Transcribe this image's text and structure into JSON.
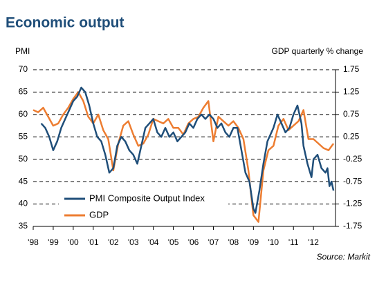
{
  "chart_data": {
    "type": "line",
    "title": "Economic output",
    "y_label": "PMI",
    "y2_label": "GDP quarterly % change",
    "source": "Source: Markit",
    "xlim": [
      1998,
      2013.1
    ],
    "xticks": [
      {
        "value": 1998,
        "label": "'98"
      },
      {
        "value": 1999,
        "label": "'99"
      },
      {
        "value": 2000,
        "label": "'00"
      },
      {
        "value": 2001,
        "label": "'01"
      },
      {
        "value": 2002,
        "label": "'02"
      },
      {
        "value": 2003,
        "label": "'03"
      },
      {
        "value": 2004,
        "label": "'04"
      },
      {
        "value": 2005,
        "label": "'05"
      },
      {
        "value": 2006,
        "label": "'06"
      },
      {
        "value": 2007,
        "label": "'07"
      },
      {
        "value": 2008,
        "label": "'08"
      },
      {
        "value": 2009,
        "label": "'09"
      },
      {
        "value": 2010,
        "label": "'10"
      },
      {
        "value": 2011,
        "label": "'11"
      },
      {
        "value": 2012,
        "label": "'12"
      }
    ],
    "ylim": [
      35,
      70
    ],
    "yticks": [
      35,
      40,
      45,
      50,
      55,
      60,
      65,
      70
    ],
    "y2lim": [
      -1.75,
      1.75
    ],
    "y2ticks": [
      -1.75,
      -1.25,
      -0.75,
      -0.25,
      0.25,
      0.75,
      1.25,
      1.75
    ],
    "grid": true,
    "legend": "lower left",
    "series": [
      {
        "name": "PMI Composite Output Index",
        "color": "#1f4e79",
        "x": [
          1998.4,
          1998.6,
          1998.8,
          1999.0,
          1999.2,
          1999.4,
          1999.6,
          1999.8,
          2000.0,
          2000.2,
          2000.4,
          2000.6,
          2000.8,
          2001.0,
          2001.2,
          2001.4,
          2001.6,
          2001.8,
          2002.0,
          2002.2,
          2002.4,
          2002.6,
          2002.8,
          2003.0,
          2003.2,
          2003.4,
          2003.6,
          2003.8,
          2004.0,
          2004.2,
          2004.4,
          2004.6,
          2004.8,
          2005.0,
          2005.2,
          2005.4,
          2005.6,
          2005.8,
          2006.0,
          2006.2,
          2006.4,
          2006.6,
          2006.8,
          2007.0,
          2007.2,
          2007.4,
          2007.6,
          2007.8,
          2008.0,
          2008.2,
          2008.4,
          2008.6,
          2008.8,
          2009.0,
          2009.1,
          2009.3,
          2009.5,
          2009.7,
          2010.0,
          2010.2,
          2010.4,
          2010.6,
          2010.8,
          2011.0,
          2011.2,
          2011.4,
          2011.5,
          2011.7,
          2011.9,
          2012.0,
          2012.2,
          2012.4,
          2012.6,
          2012.7,
          2012.8,
          2012.9,
          2013.0
        ],
        "values": [
          58,
          57,
          55,
          52,
          54,
          57,
          59,
          61,
          63,
          64,
          66,
          65,
          62,
          58,
          55,
          54,
          51,
          47,
          48,
          53,
          55,
          54,
          52,
          51,
          49,
          53,
          57,
          58,
          59,
          56,
          55,
          57,
          55,
          56,
          54,
          55,
          56,
          58,
          57,
          59,
          60,
          59,
          60,
          59,
          57,
          58,
          56,
          55,
          57,
          57,
          52,
          47,
          45,
          39,
          38,
          43,
          49,
          54,
          57,
          60,
          58,
          56,
          57,
          60,
          62,
          58,
          53,
          49,
          46,
          50,
          51,
          48,
          47,
          48,
          44,
          45,
          43
        ]
      },
      {
        "name": "GDP",
        "color": "#ed7d31",
        "axis": "y2",
        "x": [
          1998.0,
          1998.25,
          1998.5,
          1998.75,
          1999.0,
          1999.25,
          1999.5,
          1999.75,
          2000.0,
          2000.25,
          2000.5,
          2000.75,
          2001.0,
          2001.25,
          2001.5,
          2001.75,
          2002.0,
          2002.25,
          2002.5,
          2002.75,
          2003.0,
          2003.25,
          2003.5,
          2003.75,
          2004.0,
          2004.25,
          2004.5,
          2004.75,
          2005.0,
          2005.25,
          2005.5,
          2005.75,
          2006.0,
          2006.25,
          2006.5,
          2006.75,
          2007.0,
          2007.25,
          2007.5,
          2007.75,
          2008.0,
          2008.25,
          2008.5,
          2008.75,
          2009.0,
          2009.25,
          2009.5,
          2009.75,
          2010.0,
          2010.25,
          2010.5,
          2010.75,
          2011.0,
          2011.25,
          2011.5,
          2011.75,
          2012.0,
          2012.25,
          2012.5,
          2012.75,
          2013.0
        ],
        "values": [
          0.85,
          0.8,
          0.9,
          0.7,
          0.5,
          0.55,
          0.75,
          0.9,
          1.1,
          1.25,
          1.05,
          0.7,
          0.55,
          0.75,
          0.4,
          0.2,
          -0.5,
          0.1,
          0.5,
          0.6,
          0.3,
          0.05,
          0.1,
          0.3,
          0.65,
          0.6,
          0.55,
          0.65,
          0.45,
          0.45,
          0.3,
          0.55,
          0.65,
          0.7,
          0.9,
          1.05,
          0.15,
          0.7,
          0.6,
          0.5,
          0.6,
          0.45,
          0.2,
          -0.5,
          -1.5,
          -1.65,
          -0.5,
          -0.05,
          0.05,
          0.5,
          0.65,
          0.4,
          0.5,
          0.6,
          0.85,
          0.2,
          0.2,
          0.1,
          0.0,
          -0.05,
          0.1
        ]
      }
    ]
  }
}
